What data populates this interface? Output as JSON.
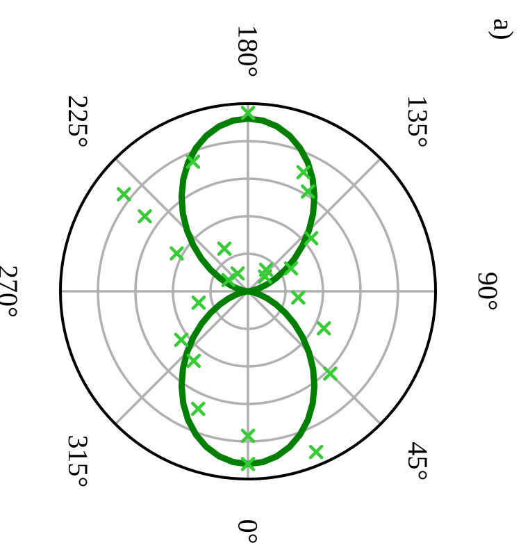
{
  "panel_label": "a)",
  "chart_data": {
    "type": "scatter",
    "projection": "polar",
    "angle_unit": "deg",
    "angle_zero_direction": "bottom",
    "angle_increase": "counterclockwise",
    "angle_tick_labels": [
      "0°",
      "45°",
      "90°",
      "135°",
      "180°",
      "225°",
      "270°",
      "315°"
    ],
    "angle_ticks": [
      0,
      45,
      90,
      135,
      180,
      225,
      270,
      315
    ],
    "radial_rings": 4,
    "rmax": 1,
    "grid": true,
    "rotated_labels": true,
    "series": [
      {
        "kind": "line",
        "color": "#007f00",
        "function": "cos^2",
        "angles": [
          0,
          5,
          10,
          15,
          20,
          25,
          30,
          35,
          40,
          45,
          50,
          55,
          60,
          65,
          70,
          75,
          80,
          85,
          90,
          95,
          100,
          105,
          110,
          115,
          120,
          125,
          130,
          135,
          140,
          145,
          150,
          155,
          160,
          165,
          170,
          175,
          180,
          185,
          190,
          195,
          200,
          205,
          210,
          215,
          220,
          225,
          230,
          235,
          240,
          245,
          250,
          255,
          260,
          265,
          270,
          275,
          280,
          285,
          290,
          295,
          300,
          305,
          310,
          315,
          320,
          325,
          330,
          335,
          340,
          345,
          350,
          355,
          360
        ],
        "radii": [
          0.92,
          0.913,
          0.892,
          0.858,
          0.812,
          0.756,
          0.69,
          0.617,
          0.54,
          0.46,
          0.38,
          0.303,
          0.23,
          0.164,
          0.108,
          0.062,
          0.028,
          0.007,
          0,
          0.007,
          0.028,
          0.062,
          0.108,
          0.164,
          0.23,
          0.303,
          0.38,
          0.46,
          0.54,
          0.617,
          0.69,
          0.756,
          0.812,
          0.858,
          0.892,
          0.913,
          0.92,
          0.913,
          0.892,
          0.858,
          0.812,
          0.756,
          0.69,
          0.617,
          0.54,
          0.46,
          0.38,
          0.303,
          0.23,
          0.164,
          0.108,
          0.062,
          0.028,
          0.007,
          0,
          0.007,
          0.028,
          0.062,
          0.108,
          0.164,
          0.23,
          0.303,
          0.38,
          0.46,
          0.54,
          0.617,
          0.69,
          0.756,
          0.812,
          0.858,
          0.892,
          0.913,
          0.92
        ]
      },
      {
        "kind": "markers",
        "marker": "x",
        "color": "#33cc33",
        "points": [
          {
            "theta": 0,
            "r": 0.92
          },
          {
            "theta": 0,
            "r": 0.77
          },
          {
            "theta": 23,
            "r": 0.93
          },
          {
            "theta": 45,
            "r": 0.62
          },
          {
            "theta": 64,
            "r": 0.45
          },
          {
            "theta": 83,
            "r": 0.27
          },
          {
            "theta": 118,
            "r": 0.26
          },
          {
            "theta": 130,
            "r": 0.44
          },
          {
            "theta": 131,
            "r": 0.12
          },
          {
            "theta": 140,
            "r": 0.15
          },
          {
            "theta": 149,
            "r": 0.62
          },
          {
            "theta": 155,
            "r": 0.7
          },
          {
            "theta": 180,
            "r": 0.95
          },
          {
            "theta": 203,
            "r": 0.75
          },
          {
            "theta": 209,
            "r": 0.26
          },
          {
            "theta": 210,
            "r": 0.11
          },
          {
            "theta": 232,
            "r": 0.84
          },
          {
            "theta": 242,
            "r": 0.43
          },
          {
            "theta": 240,
            "r": 0.12
          },
          {
            "theta": 234,
            "r": 0.68
          },
          {
            "theta": 283,
            "r": 0.27
          },
          {
            "theta": 306,
            "r": 0.44
          },
          {
            "theta": 322,
            "r": 0.47
          },
          {
            "theta": 337,
            "r": 0.68
          }
        ]
      }
    ]
  }
}
